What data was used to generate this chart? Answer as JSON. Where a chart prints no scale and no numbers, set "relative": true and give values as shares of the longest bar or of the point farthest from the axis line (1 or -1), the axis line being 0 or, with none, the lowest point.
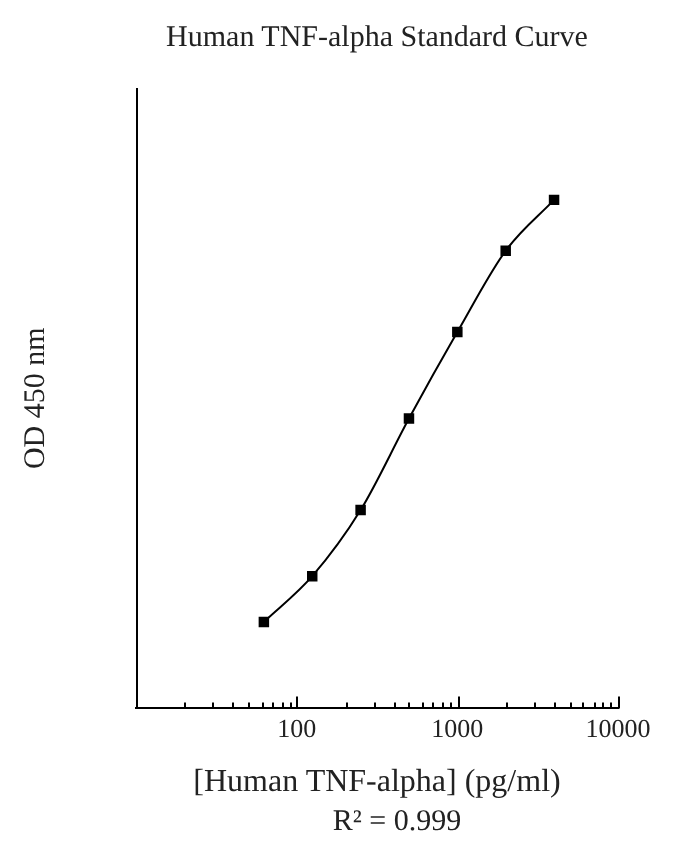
{
  "chart_data": {
    "type": "line",
    "title": "Human TNF-alpha Standard Curve",
    "xlabel": "[Human TNF-alpha] (pg/ml)",
    "ylabel": "OD 450 nm",
    "annotations": [
      "R² = 0.999"
    ],
    "x": [
      62.5,
      125,
      250,
      500,
      1000,
      2000,
      4000
    ],
    "values": [
      0.17,
      0.26,
      0.39,
      0.57,
      0.74,
      0.9,
      1
    ],
    "color": "#000000",
    "relative": true,
    "log": "x",
    "marker": "square",
    "grid": false,
    "legend": false,
    "xlim": [
      10,
      10000
    ],
    "xticks": [
      {
        "value": 20,
        "label": null
      },
      {
        "value": 30,
        "label": null
      },
      {
        "value": 40,
        "label": null
      },
      {
        "value": 50,
        "label": null
      },
      {
        "value": 60,
        "label": null
      },
      {
        "value": 70,
        "label": null
      },
      {
        "value": 80,
        "label": null
      },
      {
        "value": 90,
        "label": null
      },
      100,
      {
        "value": 200,
        "label": null
      },
      {
        "value": 300,
        "label": null
      },
      {
        "value": 400,
        "label": null
      },
      {
        "value": 500,
        "label": null
      },
      {
        "value": 600,
        "label": null
      },
      {
        "value": 700,
        "label": null
      },
      {
        "value": 800,
        "label": null
      },
      {
        "value": 900,
        "label": null
      },
      1000,
      {
        "value": 2000,
        "label": null
      },
      {
        "value": 3000,
        "label": null
      },
      {
        "value": 4000,
        "label": null
      },
      {
        "value": 5000,
        "label": null
      },
      {
        "value": 6000,
        "label": null
      },
      {
        "value": 7000,
        "label": null
      },
      {
        "value": 8000,
        "label": null
      },
      {
        "value": 9000,
        "label": null
      },
      10000
    ]
  }
}
